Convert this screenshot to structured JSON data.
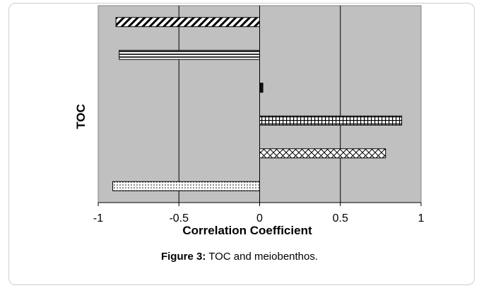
{
  "caption": {
    "label": "Figure 3:",
    "text": " TOC and meiobenthos."
  },
  "chart_data": {
    "type": "bar",
    "orientation": "horizontal",
    "title": "",
    "xlabel": "Correlation Coefficient",
    "ylabel": "TOC",
    "xlim": [
      -1,
      1
    ],
    "xticks": [
      "-1",
      "-0.5",
      "0",
      "0.5",
      "1"
    ],
    "grid": "vertical",
    "legend": "none",
    "plot_background": "#c0c0c0",
    "series": [
      {
        "value": -0.89,
        "pattern": "diagonal-thick"
      },
      {
        "value": -0.87,
        "pattern": "horizontal-lines"
      },
      {
        "value": 0.02,
        "pattern": "solid-dark"
      },
      {
        "value": 0.88,
        "pattern": "grid"
      },
      {
        "value": 0.78,
        "pattern": "diagonal-cross"
      },
      {
        "value": -0.91,
        "pattern": "dots"
      }
    ]
  }
}
